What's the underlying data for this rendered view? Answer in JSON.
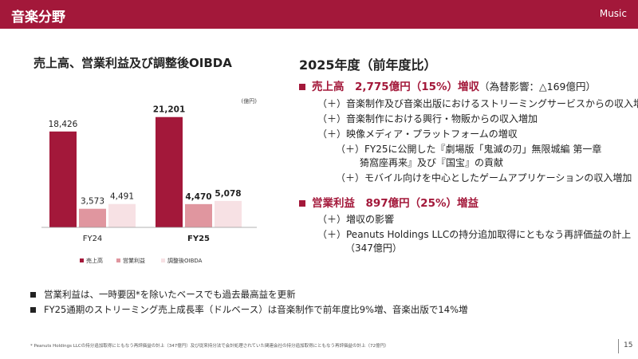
{
  "header": {
    "title": "音楽分野",
    "tag": "Music"
  },
  "left_title": "売上高、営業利益及び調整後OIBDA",
  "right_title": "2025年度（前年度比）",
  "colors": {
    "brand": "#a3183a",
    "bar_sales": "#a3183a",
    "bar_op": "#e0969f",
    "bar_oibda": "#f7e1e4"
  },
  "chart_data": {
    "type": "bar",
    "unit": "(億円)",
    "categories": [
      "FY24",
      "FY25"
    ],
    "category_bold": [
      false,
      true
    ],
    "series": [
      {
        "name": "売上高",
        "values": [
          18426,
          21201
        ],
        "labels": [
          "18,426",
          "21,201"
        ]
      },
      {
        "name": "営業利益",
        "values": [
          3573,
          4470
        ],
        "labels": [
          "3,573",
          "4,470"
        ]
      },
      {
        "name": "調整後OIBDA",
        "values": [
          4491,
          5078
        ],
        "labels": [
          "4,491",
          "5,078"
        ]
      }
    ],
    "ylim": [
      0,
      23000
    ],
    "grid": false,
    "legend": "bottom"
  },
  "right_section": {
    "sales": {
      "heading": "売上高　2,775億円（15%）増収",
      "note": "（為替影響：△169億円）",
      "items": [
        "（＋）音楽制作及び音楽出版におけるストリーミングサービスからの収入増加",
        "（＋）音楽制作における興行・物販からの収入増加",
        "（＋）映像メディア・プラットフォームの増収",
        "（＋）FY25に公開した『劇場版「鬼滅の刃」無限城編 第一章",
        "猗窩座再来』及び『国宝』の貢献",
        "（＋）モバイル向けを中心としたゲームアプリケーションの収入増加"
      ]
    },
    "op": {
      "heading": "営業利益　897億円（25%）増益",
      "items": [
        "（＋）増収の影響",
        "（＋）Peanuts Holdings LLCの持分追加取得にともなう再評価益の計上",
        "（347億円）"
      ]
    }
  },
  "notes": [
    "営業利益は、一時要因*を除いたベースでも過去最高益を更新",
    "FY25通期のストリーミング売上成長率（ドルベース）は音楽制作で前年度比9%増、音楽出版で14%増"
  ],
  "footnote": "* Peanuts Holdings LLCの持分追加取得にともなう再評価益の計上（347億円）及び従来持分法で会計処理されていた関連会社の持分追加取得にともなう再評価益の計上（72億円）",
  "page_number": "15"
}
